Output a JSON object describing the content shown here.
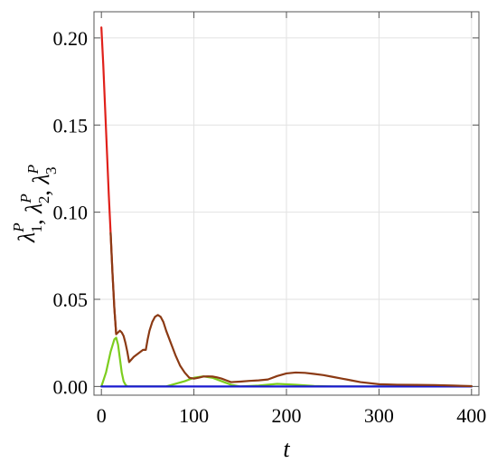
{
  "chart_data": {
    "type": "line",
    "title": "",
    "xlabel": "t",
    "ylabel_parts": [
      {
        "base": "λ",
        "sub": "1",
        "sup": "P"
      },
      {
        "sep": ", "
      },
      {
        "base": "λ",
        "sub": "2",
        "sup": "P"
      },
      {
        "sep": ", "
      },
      {
        "base": "λ",
        "sub": "3",
        "sup": "P"
      }
    ],
    "xlim": [
      -8,
      408
    ],
    "ylim": [
      -0.005,
      0.215
    ],
    "xticks": [
      0,
      100,
      200,
      300,
      400
    ],
    "xtick_labels": [
      "0",
      "100",
      "200",
      "300",
      "400"
    ],
    "yticks": [
      0.0,
      0.05,
      0.1,
      0.15,
      0.2
    ],
    "ytick_labels": [
      "0.00",
      "0.05",
      "0.10",
      "0.15",
      "0.20"
    ],
    "grid": true,
    "legend": "none",
    "series": [
      {
        "color": "#7ccd1e",
        "x": [
          0,
          5,
          10,
          14,
          16,
          18,
          20,
          22,
          24,
          26,
          28,
          30,
          40,
          50,
          60,
          70,
          80,
          90,
          100,
          110,
          120,
          130,
          140,
          150,
          170,
          190,
          210,
          230,
          250,
          300,
          350,
          400
        ],
        "y": [
          0.0,
          0.008,
          0.02,
          0.027,
          0.028,
          0.024,
          0.016,
          0.008,
          0.003,
          0.001,
          0.0,
          0.0,
          0.0,
          0.0,
          0.0,
          0.0,
          0.0015,
          0.003,
          0.005,
          0.0058,
          0.005,
          0.003,
          0.001,
          0.0,
          0.0005,
          0.0015,
          0.001,
          0.0003,
          0.0,
          0.0,
          0.0,
          0.0
        ]
      },
      {
        "color": "#1a1ad0",
        "x": [
          0,
          100,
          200,
          300,
          400
        ],
        "y": [
          0.0,
          0.0,
          0.0,
          0.0,
          0.0
        ]
      },
      {
        "color": "#e0201a",
        "x": [
          0,
          2,
          4,
          6,
          8,
          10,
          12,
          14,
          16
        ],
        "y": [
          0.206,
          0.185,
          0.16,
          0.135,
          0.11,
          0.088,
          0.065,
          0.045,
          0.03
        ]
      },
      {
        "color": "#8b3a14",
        "x": [
          10,
          12,
          14,
          16,
          18,
          20,
          22,
          24,
          26,
          28,
          30,
          35,
          40,
          45,
          48,
          50,
          52,
          55,
          58,
          61,
          64,
          67,
          70,
          75,
          80,
          85,
          90,
          95,
          100,
          105,
          110,
          115,
          120,
          125,
          130,
          135,
          140,
          150,
          160,
          170,
          180,
          190,
          200,
          210,
          220,
          230,
          240,
          250,
          260,
          270,
          280,
          300,
          320,
          340,
          360,
          380,
          400
        ],
        "y": [
          0.088,
          0.065,
          0.045,
          0.03,
          0.031,
          0.032,
          0.031,
          0.029,
          0.025,
          0.02,
          0.014,
          0.017,
          0.019,
          0.021,
          0.021,
          0.027,
          0.032,
          0.037,
          0.04,
          0.041,
          0.04,
          0.037,
          0.032,
          0.025,
          0.018,
          0.012,
          0.008,
          0.005,
          0.0045,
          0.005,
          0.0057,
          0.0058,
          0.0057,
          0.0052,
          0.0045,
          0.0035,
          0.0025,
          0.0028,
          0.0032,
          0.0035,
          0.004,
          0.006,
          0.0075,
          0.008,
          0.0078,
          0.0072,
          0.0065,
          0.0055,
          0.0045,
          0.0035,
          0.0025,
          0.0013,
          0.001,
          0.0009,
          0.0008,
          0.0005,
          0.0002
        ]
      }
    ]
  }
}
